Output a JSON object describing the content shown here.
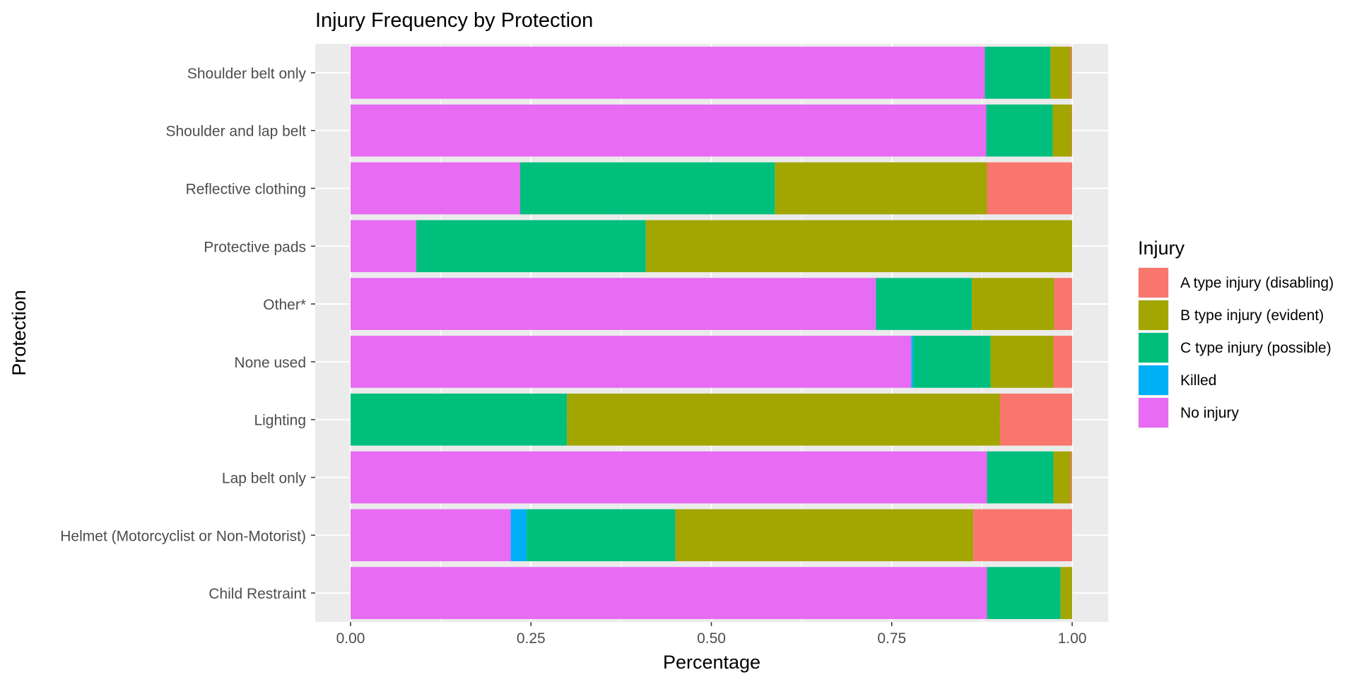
{
  "chart_data": {
    "type": "bar",
    "orientation": "horizontal",
    "stacked": "fill",
    "title": "Injury Frequency by Protection",
    "xlabel": "Percentage",
    "ylabel": "Protection",
    "xlim": [
      0,
      1
    ],
    "xticks": [
      "0.00",
      "0.25",
      "0.50",
      "0.75",
      "1.00"
    ],
    "xtick_values": [
      0,
      0.25,
      0.5,
      0.75,
      1.0
    ],
    "grid": true,
    "legend_title": "Injury",
    "legend_position": "right",
    "categories": [
      "Child Restraint",
      "Helmet (Motorcyclist or Non-Motorist)",
      "Lap belt only",
      "Lighting",
      "None used",
      "Other*",
      "Protective pads",
      "Reflective clothing",
      "Shoulder and lap belt",
      "Shoulder belt only"
    ],
    "series": [
      {
        "name": "No injury",
        "color": "#E76BF3",
        "values": [
          0.882,
          0.222,
          0.882,
          0.0,
          0.777,
          0.728,
          0.091,
          0.235,
          0.881,
          0.879
        ]
      },
      {
        "name": "Killed",
        "color": "#00B0F6",
        "values": [
          0.0,
          0.022,
          0.0,
          0.0,
          0.003,
          0.0,
          0.0,
          0.0,
          0.0,
          0.0
        ]
      },
      {
        "name": "C type injury (possible)",
        "color": "#00BF7D",
        "values": [
          0.102,
          0.206,
          0.092,
          0.3,
          0.107,
          0.133,
          0.318,
          0.353,
          0.092,
          0.091
        ]
      },
      {
        "name": "B type injury (evident)",
        "color": "#A3A500",
        "values": [
          0.016,
          0.413,
          0.024,
          0.6,
          0.087,
          0.114,
          0.591,
          0.294,
          0.026,
          0.028
        ]
      },
      {
        "name": "A type injury (disabling)",
        "color": "#F8766D",
        "values": [
          0.0,
          0.137,
          0.002,
          0.1,
          0.026,
          0.025,
          0.0,
          0.118,
          0.001,
          0.002
        ]
      }
    ],
    "legend_order": [
      "A type injury (disabling)",
      "B type injury (evident)",
      "C type injury (possible)",
      "Killed",
      "No injury"
    ]
  }
}
